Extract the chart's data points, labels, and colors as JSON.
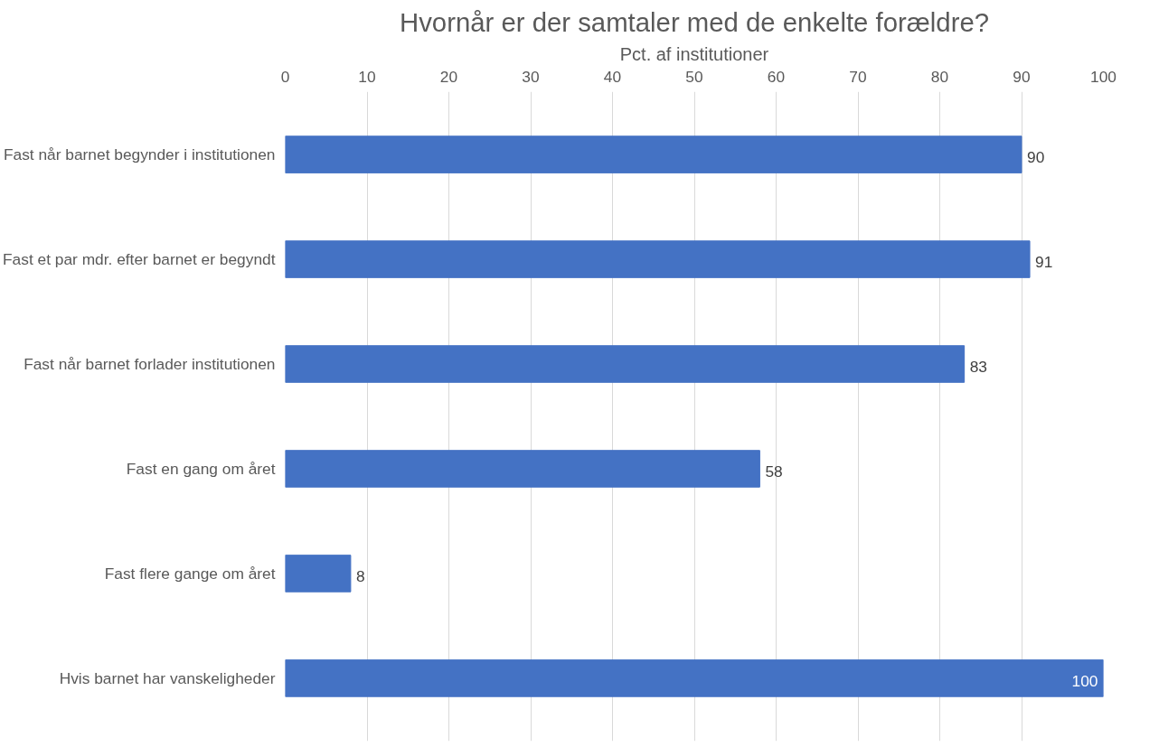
{
  "chart_data": {
    "type": "bar",
    "orientation": "horizontal",
    "title": "Hvornår er der samtaler med de enkelte forældre?",
    "xlabel": "Pct. af institutioner",
    "categories": [
      "Fast når barnet begynder i institutionen",
      "Fast et par mdr. efter barnet er begyndt",
      "Fast når barnet forlader institutionen",
      "Fast en gang om året",
      "Fast flere gange om året",
      "Hvis barnet har vanskeligheder"
    ],
    "values": [
      90,
      91,
      83,
      58,
      8,
      100
    ],
    "color": "#4472c4",
    "xlim": [
      0,
      100
    ],
    "xticks": [
      0,
      10,
      20,
      30,
      40,
      50,
      60,
      70,
      80,
      90,
      100
    ],
    "grid": "x",
    "data_labels": true
  }
}
